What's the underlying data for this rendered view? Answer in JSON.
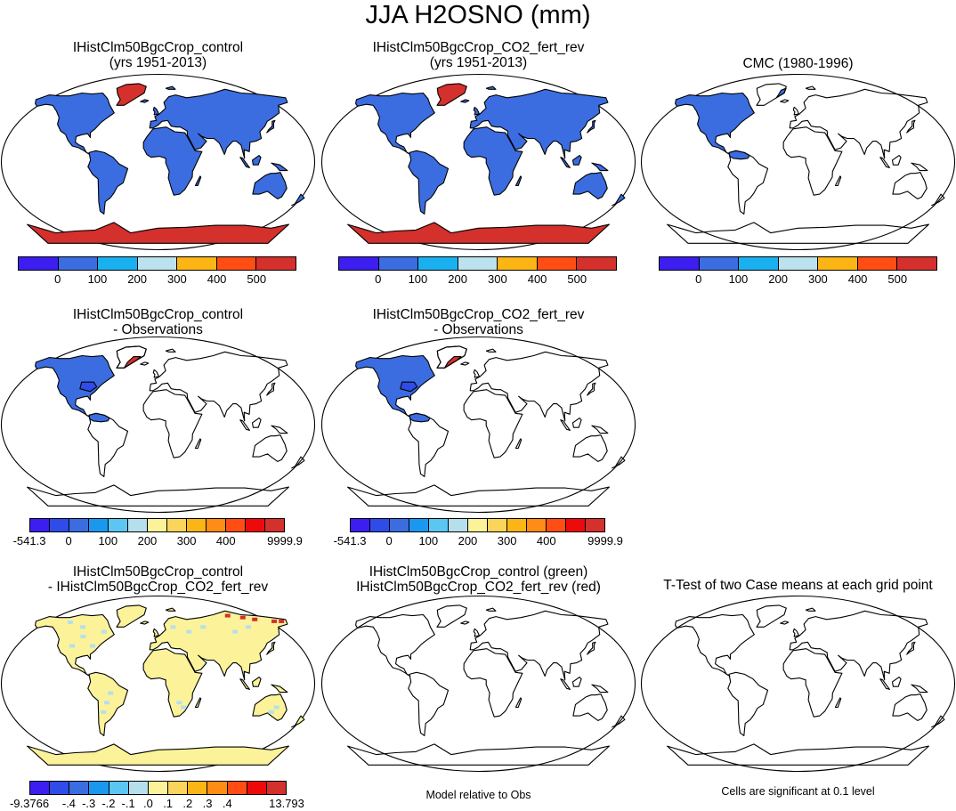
{
  "page": {
    "title": "JJA H2OSNO (mm)"
  },
  "panels": {
    "p1": {
      "line1": "IHistClm50BgcCrop_control",
      "line2": "(yrs 1951-2013)"
    },
    "p2": {
      "line1": "IHistClm50BgcCrop_CO2_fert_rev",
      "line2": "(yrs 1951-2013)"
    },
    "p3": {
      "line1": "CMC (1980-1996)",
      "line2": ""
    },
    "p4": {
      "line1": "IHistClm50BgcCrop_control",
      "line2": "- Observations"
    },
    "p5": {
      "line1": "IHistClm50BgcCrop_CO2_fert_rev",
      "line2": "- Observations"
    },
    "p7": {
      "line1": "IHistClm50BgcCrop_control",
      "line2": "- IHistClm50BgcCrop_CO2_fert_rev"
    },
    "p8": {
      "line1": "IHistClm50BgcCrop_control (green)",
      "line2": "IHistClm50BgcCrop_CO2_fert_rev (red)"
    },
    "p9": {
      "line1": "T-Test of two Case means at each grid point",
      "line2": ""
    }
  },
  "colorbars": {
    "abs": {
      "colors": [
        "#3c1ef0",
        "#3b6de0",
        "#1ab0f0",
        "#bde2ef",
        "#fbb515",
        "#ff4d14",
        "#d4302c"
      ],
      "labels": [
        "0",
        "100",
        "200",
        "300",
        "400",
        "500"
      ]
    },
    "diffobs": {
      "colors": [
        "#3c1ef0",
        "#2f4ce8",
        "#3b6de0",
        "#1a98f0",
        "#5cc6f2",
        "#b6dfee",
        "#fbf29a",
        "#fbd45c",
        "#fbb515",
        "#ff8c14",
        "#ff4d14",
        "#ee0a0a",
        "#d4302c"
      ],
      "labels": [
        "-541.3",
        "0",
        "100",
        "200",
        "300",
        "400",
        "9999.9"
      ]
    },
    "diffcase": {
      "colors": [
        "#3c1ef0",
        "#2f4ce8",
        "#3b6de0",
        "#1a98f0",
        "#5cc6f2",
        "#b6dfee",
        "#fbf29a",
        "#fbd45c",
        "#fbb515",
        "#ff8c14",
        "#ff4d14",
        "#ee0a0a",
        "#d4302c"
      ],
      "labels": [
        "-9.3766",
        "-.4",
        "-.3",
        "-.2",
        "-.1",
        ".0",
        ".1",
        ".2",
        ".3",
        ".4",
        "13.793"
      ]
    }
  },
  "notes": {
    "model_rel": "Model relative to Obs",
    "cells_sig": "Cells are significant at 0.1 level"
  },
  "map_fill_colors": {
    "model_land": "#3b6de0",
    "greenland": "#d4302c",
    "antarctica": "#d4302c",
    "diff_obs": "#3b6de0",
    "diff_obs_dark": "#2f4ce8",
    "diff_case": "#fbf29a",
    "diff_case_light": "#b6dfee"
  }
}
